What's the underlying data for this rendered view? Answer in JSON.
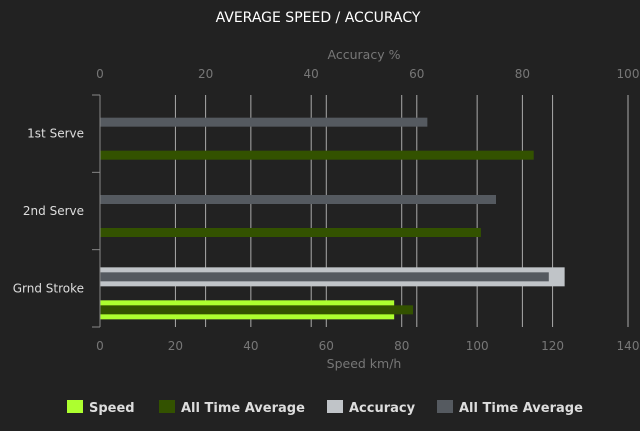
{
  "chart_data": {
    "type": "bar",
    "orientation": "horizontal",
    "title": "AVERAGE SPEED / ACCURACY",
    "categories": [
      "1st Serve",
      "2nd Serve",
      "Grnd Stroke"
    ],
    "x_bottom": {
      "label": "Speed km/h",
      "range": [
        0,
        140
      ],
      "ticks": [
        0,
        20,
        40,
        60,
        80,
        100,
        120,
        140
      ]
    },
    "x_top": {
      "label": "Accuracy %",
      "range": [
        0,
        100
      ],
      "ticks": [
        0,
        20,
        40,
        60,
        80,
        100
      ]
    },
    "grid": true,
    "legend_position": "bottom",
    "series": [
      {
        "name": "Speed",
        "axis": "bottom",
        "color": "#adff2f",
        "values": [
          null,
          null,
          78
        ]
      },
      {
        "name": "All Time Average",
        "axis": "bottom",
        "color": "#335200",
        "values": [
          115,
          101,
          83
        ]
      },
      {
        "name": "Accuracy",
        "axis": "top",
        "color": "#c0c4c8",
        "values": [
          null,
          null,
          88
        ]
      },
      {
        "name": "All Time Average",
        "axis": "top",
        "color": "#555a60",
        "values": [
          62,
          75,
          85
        ]
      }
    ]
  }
}
